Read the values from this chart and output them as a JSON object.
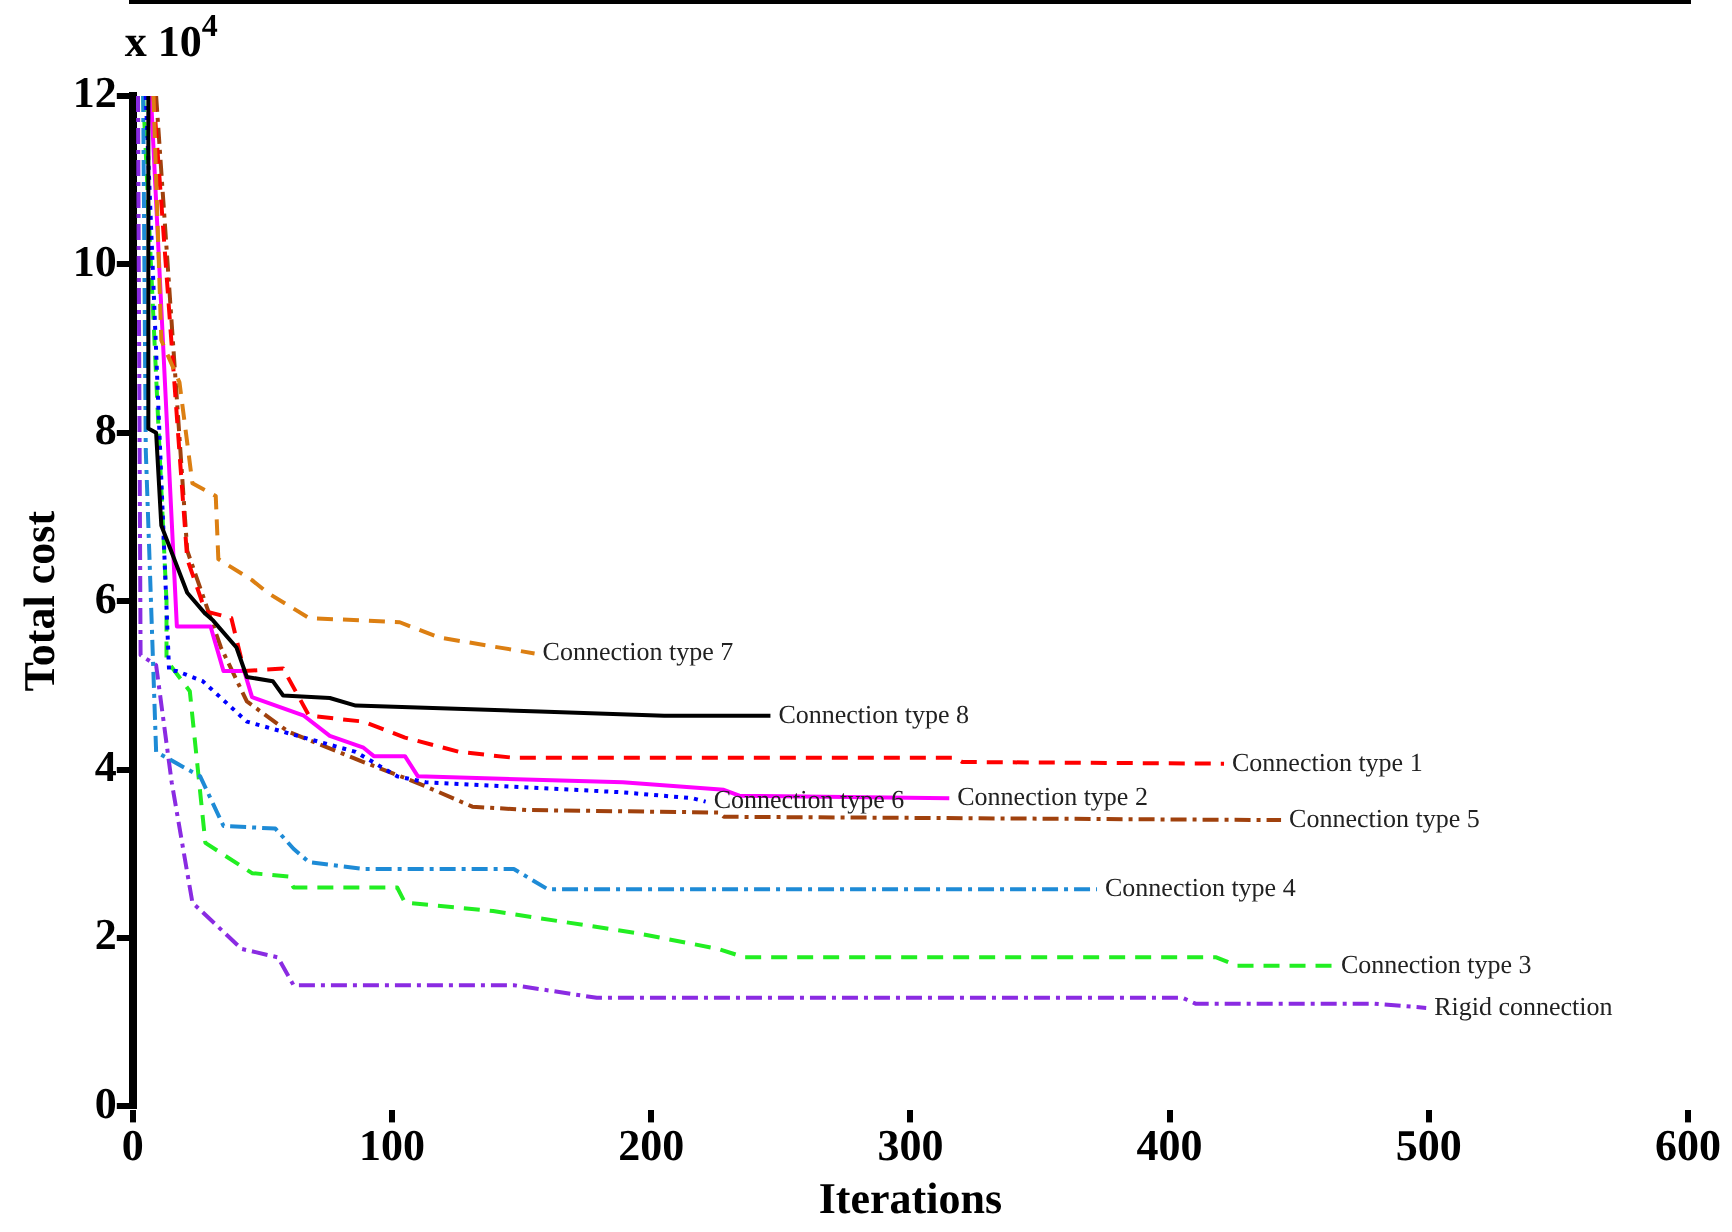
{
  "chart_data": {
    "type": "line",
    "xlabel": "Iterations",
    "ylabel": "Total cost",
    "annotations": [
      "x 10$^{4}$"
    ],
    "xlim": [
      0,
      600
    ],
    "xticks": [
      0,
      100,
      200,
      300,
      400,
      500,
      600
    ],
    "ylim": [
      0,
      12
    ],
    "yticks": [
      0,
      2,
      4,
      6,
      8,
      10,
      12
    ],
    "grid": false,
    "legend": false,
    "marker": "none",
    "series": [
      {
        "name": "Connection type 7",
        "color": "#dc7f12",
        "line_style": "dashed",
        "x": [
          8,
          11,
          18,
          23,
          32,
          33,
          46,
          52,
          68,
          103,
          118,
          155
        ],
        "values": [
          12,
          9.1,
          8.6,
          7.4,
          7.25,
          6.5,
          6.25,
          6.1,
          5.8,
          5.75,
          5.57,
          5.38
        ]
      },
      {
        "name": "Connection type 8",
        "color": "#000000",
        "line_style": "solid",
        "x": [
          6,
          6,
          9,
          11,
          21,
          28,
          31,
          40,
          44,
          54,
          58,
          76,
          86,
          157,
          205,
          246
        ],
        "values": [
          12,
          8.05,
          8.0,
          6.9,
          6.1,
          5.85,
          5.77,
          5.45,
          5.1,
          5.05,
          4.88,
          4.85,
          4.76,
          4.69,
          4.64,
          4.64
        ]
      },
      {
        "name": "Connection type 1",
        "color": "#ff0000",
        "line_style": "dashed",
        "x": [
          8,
          21,
          28,
          38,
          43,
          58,
          68,
          89,
          105,
          126,
          147,
          317,
          320,
          421
        ],
        "values": [
          12,
          6.5,
          5.88,
          5.8,
          5.17,
          5.2,
          4.64,
          4.57,
          4.38,
          4.21,
          4.14,
          4.14,
          4.09,
          4.07
        ]
      },
      {
        "name": "Connection type 2",
        "color": "#ff00ff",
        "line_style": "solid",
        "x": [
          7,
          17,
          30,
          35,
          43,
          46,
          66,
          76,
          89,
          93,
          105,
          110,
          189,
          228,
          234,
          315
        ],
        "values": [
          12,
          5.7,
          5.7,
          5.17,
          5.17,
          4.86,
          4.64,
          4.4,
          4.26,
          4.16,
          4.16,
          3.92,
          3.85,
          3.76,
          3.69,
          3.66
        ]
      },
      {
        "name": "Connection type 6",
        "color": "#0000ff",
        "line_style": "dotted",
        "x": [
          5,
          14,
          17,
          27,
          44,
          66,
          86,
          102,
          113,
          189,
          216,
          221
        ],
        "values": [
          12,
          5.17,
          5.17,
          5.05,
          4.57,
          4.38,
          4.21,
          3.92,
          3.85,
          3.73,
          3.66,
          3.62
        ]
      },
      {
        "name": "Connection type 5",
        "color": "#a0410d",
        "line_style": "dashdot",
        "x": [
          9,
          21,
          34,
          44,
          60,
          89,
          105,
          113,
          131,
          152,
          226,
          228,
          443
        ],
        "values": [
          12,
          6.6,
          5.45,
          4.81,
          4.45,
          4.09,
          3.9,
          3.8,
          3.56,
          3.52,
          3.49,
          3.44,
          3.4
        ]
      },
      {
        "name": "Connection type 4",
        "color": "#1e8bd6",
        "line_style": "dashdot",
        "x": [
          4,
          5,
          9,
          26,
          35,
          55,
          62,
          68,
          89,
          147,
          160,
          372
        ],
        "values": [
          12,
          7.8,
          4.21,
          3.92,
          3.33,
          3.3,
          3.06,
          2.9,
          2.82,
          2.82,
          2.58,
          2.58
        ]
      },
      {
        "name": "Connection type 3",
        "color": "#22ee22",
        "line_style": "dashed",
        "x": [
          4,
          13,
          13,
          22,
          28,
          46,
          60,
          62,
          102,
          105,
          139,
          194,
          226,
          236,
          418,
          426,
          463
        ],
        "values": [
          12,
          6.0,
          5.3,
          4.93,
          3.13,
          2.77,
          2.73,
          2.6,
          2.6,
          2.42,
          2.32,
          2.06,
          1.87,
          1.77,
          1.77,
          1.67,
          1.67
        ]
      },
      {
        "name": "Rigid connection",
        "color": "#8a2be2",
        "line_style": "dashdot",
        "x": [
          2,
          3,
          9,
          15,
          23,
          42,
          56,
          62,
          147,
          179,
          405,
          410,
          479,
          499
        ],
        "values": [
          12,
          5.36,
          5.24,
          3.85,
          2.42,
          1.87,
          1.77,
          1.44,
          1.44,
          1.29,
          1.29,
          1.22,
          1.22,
          1.17
        ]
      }
    ]
  }
}
